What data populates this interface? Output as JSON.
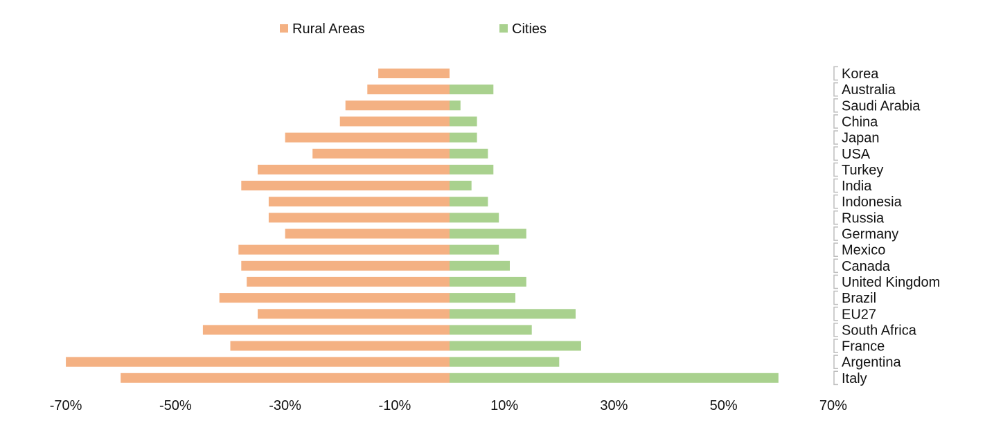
{
  "chart_data": {
    "type": "bar",
    "orientation": "horizontal",
    "categories": [
      "Korea",
      "Australia",
      "Saudi Arabia",
      "China",
      "Japan",
      "USA",
      "Turkey",
      "India",
      "Indonesia",
      "Russia",
      "Germany",
      "Mexico",
      "Canada",
      "United Kingdom",
      "Brazil",
      "EU27",
      "South Africa",
      "France",
      "Argentina",
      "Italy"
    ],
    "series": [
      {
        "name": "Rural Areas",
        "color": "#f4b183",
        "values": [
          -13,
          -15,
          -19,
          -20,
          -30,
          -25,
          -35,
          -38,
          -33,
          -33,
          -30,
          -38.5,
          -38,
          -37,
          -42,
          -35,
          -45,
          -40,
          -70,
          -60
        ]
      },
      {
        "name": "Cities",
        "color": "#a9d18e",
        "values": [
          0,
          8,
          2,
          5,
          5,
          7,
          8,
          4,
          7,
          9,
          14,
          9,
          11,
          14,
          12,
          23,
          15,
          24,
          20,
          60
        ]
      }
    ],
    "xlim": [
      -70,
      70
    ],
    "xticks": [
      "-70%",
      "-50%",
      "-30%",
      "-10%",
      "10%",
      "30%",
      "50%",
      "70%"
    ],
    "xtick_values": [
      -70,
      -50,
      -30,
      -10,
      10,
      30,
      50,
      70
    ],
    "legend_position": "top",
    "grid": false,
    "title": "",
    "xlabel": "",
    "ylabel": ""
  }
}
